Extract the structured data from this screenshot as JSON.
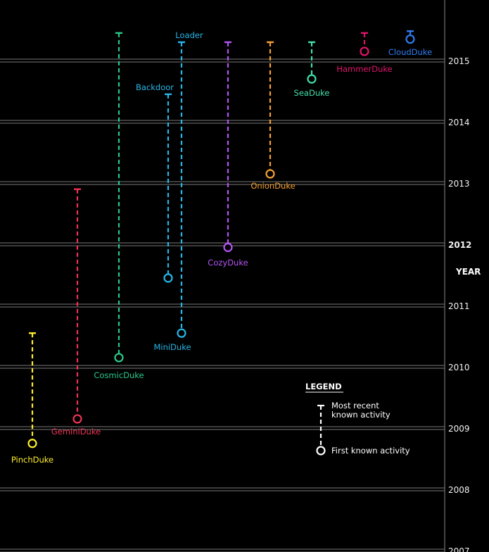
{
  "chart_data": {
    "type": "timeline",
    "axis_title": "YEAR",
    "y_ticks": [
      "2007",
      "2008",
      "2009",
      "2010",
      "2011",
      "2012",
      "2013",
      "2014",
      "2015"
    ],
    "y_tick_bold": "2012",
    "ylim": [
      2007.0,
      2016.0
    ],
    "grid": true,
    "series": [
      {
        "name": "PinchDuke",
        "color": "#ffee2a",
        "first": 2008.75,
        "last": 2010.55
      },
      {
        "name": "GeminiDuke",
        "color": "#ee3355",
        "first": 2009.15,
        "last": 2012.9
      },
      {
        "name": "CosmicDuke",
        "color": "#27c98a",
        "first": 2010.15,
        "last": 2015.45
      },
      {
        "name": "Backdoor",
        "color": "#28b6e8",
        "first": 2011.45,
        "last": 2014.45
      },
      {
        "name": "Loader",
        "color": "#28b6e8",
        "first": 2010.55,
        "last": 2015.3
      },
      {
        "name": "MiniDuke",
        "color": "#28b6e8"
      },
      {
        "name": "CozyDuke",
        "color": "#b455f5",
        "first": 2011.95,
        "last": 2015.3
      },
      {
        "name": "OnionDuke",
        "color": "#f5a030",
        "first": 2013.15,
        "last": 2015.3
      },
      {
        "name": "SeaDuke",
        "color": "#42e0a8",
        "first": 2014.7,
        "last": 2015.3
      },
      {
        "name": "HammerDuke",
        "color": "#e0156a",
        "first": 2015.15,
        "last": 2015.45
      },
      {
        "name": "CloudDuke",
        "color": "#2f7df0",
        "first": 2015.35,
        "last": 2015.48
      }
    ]
  },
  "legend": {
    "title": "LEGEND",
    "recent_line1": "Most recent",
    "recent_line2": "known activity",
    "first": "First known activity"
  }
}
